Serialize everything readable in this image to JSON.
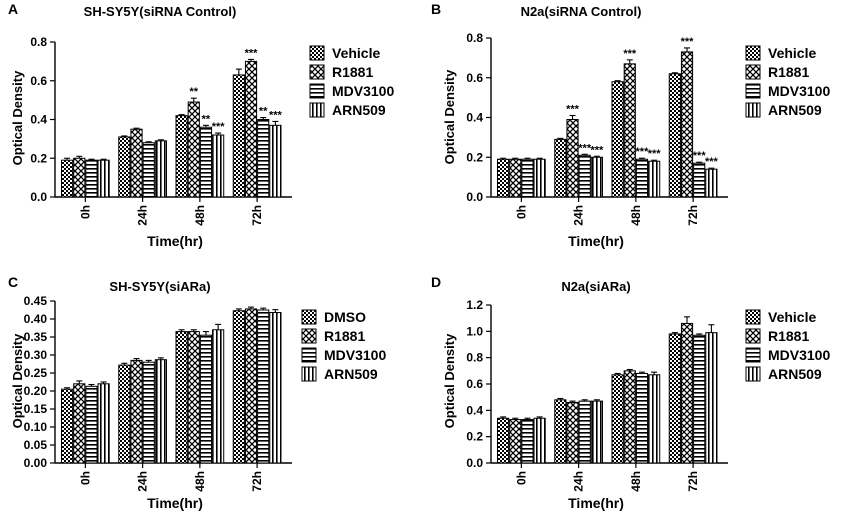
{
  "chart_data": [
    {
      "panel": "A",
      "type": "bar",
      "title": "SH-SY5Y(siRNA Control)",
      "xlabel": "Time(hr)",
      "ylabel": "Optical Density",
      "ylim": [
        0,
        0.8
      ],
      "yticks": [
        0.0,
        0.2,
        0.4,
        0.6,
        0.8
      ],
      "categories": [
        "0h",
        "24h",
        "48h",
        "72h"
      ],
      "series": [
        {
          "name": "Vehicle",
          "pattern": "checker",
          "values": [
            0.19,
            0.31,
            0.42,
            0.63
          ],
          "errors": [
            0.01,
            0.005,
            0.005,
            0.03
          ],
          "stars": [
            "",
            "",
            "",
            ""
          ]
        },
        {
          "name": "R1881",
          "pattern": "diamond",
          "values": [
            0.2,
            0.35,
            0.49,
            0.7
          ],
          "errors": [
            0.01,
            0.005,
            0.02,
            0.01
          ],
          "stars": [
            "",
            "",
            "**",
            "***"
          ]
        },
        {
          "name": "MDV3100",
          "pattern": "hlines",
          "values": [
            0.19,
            0.28,
            0.36,
            0.4
          ],
          "errors": [
            0.005,
            0.005,
            0.01,
            0.01
          ],
          "stars": [
            "",
            "",
            "**",
            "**"
          ]
        },
        {
          "name": "ARN509",
          "pattern": "vlines",
          "values": [
            0.19,
            0.29,
            0.32,
            0.37
          ],
          "errors": [
            0.005,
            0.005,
            0.01,
            0.02
          ],
          "stars": [
            "",
            "",
            "***",
            "***"
          ]
        }
      ]
    },
    {
      "panel": "B",
      "type": "bar",
      "title": "N2a(siRNA Control)",
      "xlabel": "Time(hr)",
      "ylabel": "Optical Density",
      "ylim": [
        0,
        0.8
      ],
      "yticks": [
        0.0,
        0.2,
        0.4,
        0.6,
        0.8
      ],
      "categories": [
        "0h",
        "24h",
        "48h",
        "72h"
      ],
      "series": [
        {
          "name": "Vehicle",
          "pattern": "checker",
          "values": [
            0.19,
            0.29,
            0.58,
            0.62
          ],
          "errors": [
            0.005,
            0.005,
            0.005,
            0.005
          ],
          "stars": [
            "",
            "",
            "",
            ""
          ]
        },
        {
          "name": "R1881",
          "pattern": "diamond",
          "values": [
            0.19,
            0.39,
            0.67,
            0.73
          ],
          "errors": [
            0.005,
            0.02,
            0.02,
            0.02
          ],
          "stars": [
            "",
            "***",
            "***",
            "***"
          ]
        },
        {
          "name": "MDV3100",
          "pattern": "hlines",
          "values": [
            0.19,
            0.21,
            0.19,
            0.17
          ],
          "errors": [
            0.005,
            0.005,
            0.005,
            0.005
          ],
          "stars": [
            "",
            "***",
            "***",
            "***"
          ]
        },
        {
          "name": "ARN509",
          "pattern": "vlines",
          "values": [
            0.19,
            0.2,
            0.18,
            0.14
          ],
          "errors": [
            0.005,
            0.005,
            0.005,
            0.005
          ],
          "stars": [
            "",
            "***",
            "***",
            "***"
          ]
        }
      ]
    },
    {
      "panel": "C",
      "type": "bar",
      "title": "SH-SY5Y(siARa)",
      "xlabel": "Time(hr)",
      "ylabel": "Optical Density",
      "ylim": [
        0,
        0.45
      ],
      "yticks": [
        0.0,
        0.05,
        0.1,
        0.15,
        0.2,
        0.25,
        0.3,
        0.35,
        0.4,
        0.45
      ],
      "categories": [
        "0h",
        "24h",
        "48h",
        "72h"
      ],
      "series": [
        {
          "name": "DMSO",
          "pattern": "checker",
          "values": [
            0.205,
            0.272,
            0.365,
            0.423
          ],
          "errors": [
            0.004,
            0.005,
            0.005,
            0.005
          ],
          "stars": [
            "",
            "",
            "",
            ""
          ]
        },
        {
          "name": "R1881",
          "pattern": "diamond",
          "values": [
            0.22,
            0.285,
            0.365,
            0.428
          ],
          "errors": [
            0.008,
            0.005,
            0.005,
            0.005
          ],
          "stars": [
            "",
            "",
            "",
            ""
          ]
        },
        {
          "name": "MDV3100",
          "pattern": "hlines",
          "values": [
            0.213,
            0.28,
            0.355,
            0.425
          ],
          "errors": [
            0.005,
            0.005,
            0.01,
            0.005
          ],
          "stars": [
            "",
            "",
            "",
            ""
          ]
        },
        {
          "name": "ARN509",
          "pattern": "vlines",
          "values": [
            0.22,
            0.287,
            0.37,
            0.418
          ],
          "errors": [
            0.005,
            0.005,
            0.015,
            0.008
          ],
          "stars": [
            "",
            "",
            "",
            ""
          ]
        }
      ]
    },
    {
      "panel": "D",
      "type": "bar",
      "title": "N2a(siARa)",
      "xlabel": "Time(hr)",
      "ylabel": "Optical Density",
      "ylim": [
        0,
        1.2
      ],
      "yticks": [
        0.0,
        0.2,
        0.4,
        0.6,
        0.8,
        1.0,
        1.2
      ],
      "categories": [
        "0h",
        "24h",
        "48h",
        "72h"
      ],
      "series": [
        {
          "name": "Vehicle",
          "pattern": "checker",
          "values": [
            0.34,
            0.48,
            0.67,
            0.98
          ],
          "errors": [
            0.01,
            0.01,
            0.01,
            0.01
          ],
          "stars": [
            "",
            "",
            "",
            ""
          ]
        },
        {
          "name": "R1881",
          "pattern": "diamond",
          "values": [
            0.33,
            0.46,
            0.7,
            1.06
          ],
          "errors": [
            0.01,
            0.01,
            0.01,
            0.05
          ],
          "stars": [
            "",
            "",
            "",
            ""
          ]
        },
        {
          "name": "MDV3100",
          "pattern": "hlines",
          "values": [
            0.33,
            0.47,
            0.68,
            0.97
          ],
          "errors": [
            0.01,
            0.01,
            0.01,
            0.01
          ],
          "stars": [
            "",
            "",
            "",
            ""
          ]
        },
        {
          "name": "ARN509",
          "pattern": "vlines",
          "values": [
            0.34,
            0.47,
            0.67,
            0.99
          ],
          "errors": [
            0.01,
            0.01,
            0.02,
            0.06
          ],
          "stars": [
            "",
            "",
            "",
            ""
          ]
        }
      ]
    }
  ]
}
